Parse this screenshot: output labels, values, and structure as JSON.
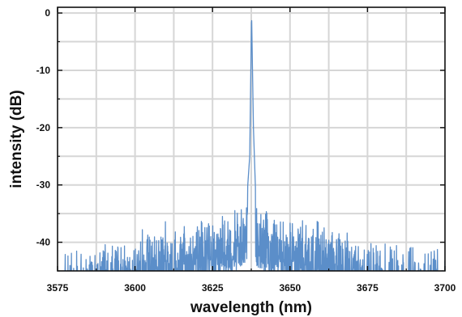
{
  "chart_data": {
    "type": "line",
    "xlabel": "wavelength (nm)",
    "ylabel": "intensity (dB)",
    "xlim": [
      3575,
      3700
    ],
    "ylim": [
      -45,
      1
    ],
    "x_ticks": [
      3575,
      3600,
      3625,
      3650,
      3675,
      3700
    ],
    "x_tick_labels": [
      "3575",
      "3600",
      "3625",
      "3650",
      "3675",
      "3700"
    ],
    "y_ticks": [
      0,
      -10,
      -20,
      -30,
      -40
    ],
    "y_tick_labels": [
      "0",
      "-10",
      "-20",
      "-30",
      "-40"
    ],
    "grid": true,
    "series": [
      {
        "color": "#5b8ec9",
        "peak": {
          "x": 3637.6,
          "y": 0
        },
        "x": [
          3575,
          3580,
          3585,
          3590,
          3595,
          3600,
          3605,
          3610,
          3615,
          3620,
          3625,
          3630,
          3634,
          3636,
          3637,
          3637.6,
          3638.2,
          3639,
          3641,
          3645,
          3650,
          3655,
          3660,
          3665,
          3670,
          3675,
          3680,
          3685,
          3690,
          3695,
          3700
        ],
        "y": [
          -42,
          -41,
          -40,
          -40.5,
          -39.5,
          -39,
          -37.5,
          -38,
          -37,
          -36,
          -35.5,
          -35,
          -34,
          -33,
          -25,
          0,
          -20,
          -33,
          -34,
          -35,
          -35.5,
          -36,
          -36.5,
          -37.5,
          -38,
          -38.5,
          -39,
          -40,
          -40.5,
          -41,
          -41.5
        ]
      }
    ]
  }
}
